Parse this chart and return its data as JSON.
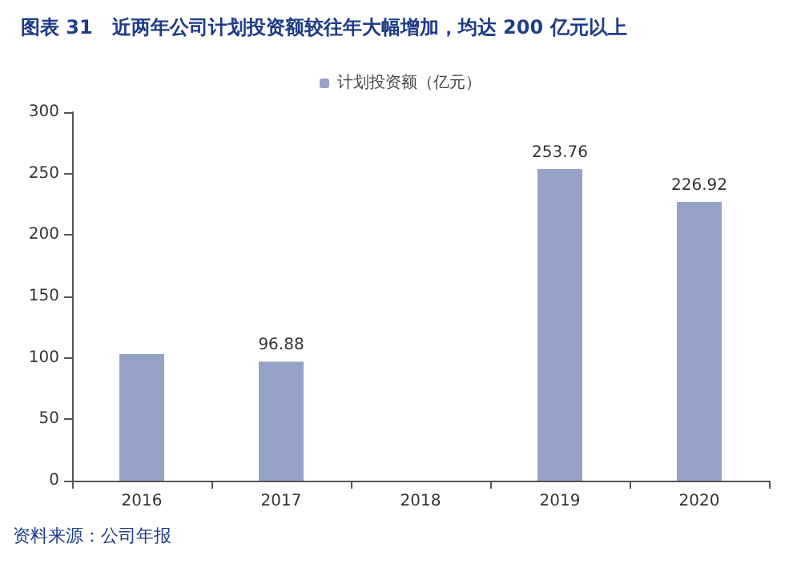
{
  "chart_data": {
    "type": "bar",
    "title": "图表 31　近两年公司计划投资额较往年大幅增加，均达 200 亿元以上",
    "categories": [
      "2016",
      "2017",
      "2018",
      "2019",
      "2020"
    ],
    "series": [
      {
        "name": "计划投资额（亿元）",
        "color": "#97a3c6",
        "values": [
          103,
          96.88,
          null,
          253.76,
          226.92
        ],
        "value_labels": [
          null,
          "96.88",
          null,
          "253.76",
          "226.92"
        ]
      }
    ],
    "ylim": [
      0,
      300
    ],
    "yticks": [
      0,
      50,
      100,
      150,
      200,
      250,
      300
    ],
    "grid": false,
    "legend": "top",
    "annotations": [
      "资料来源：公司年报"
    ]
  }
}
